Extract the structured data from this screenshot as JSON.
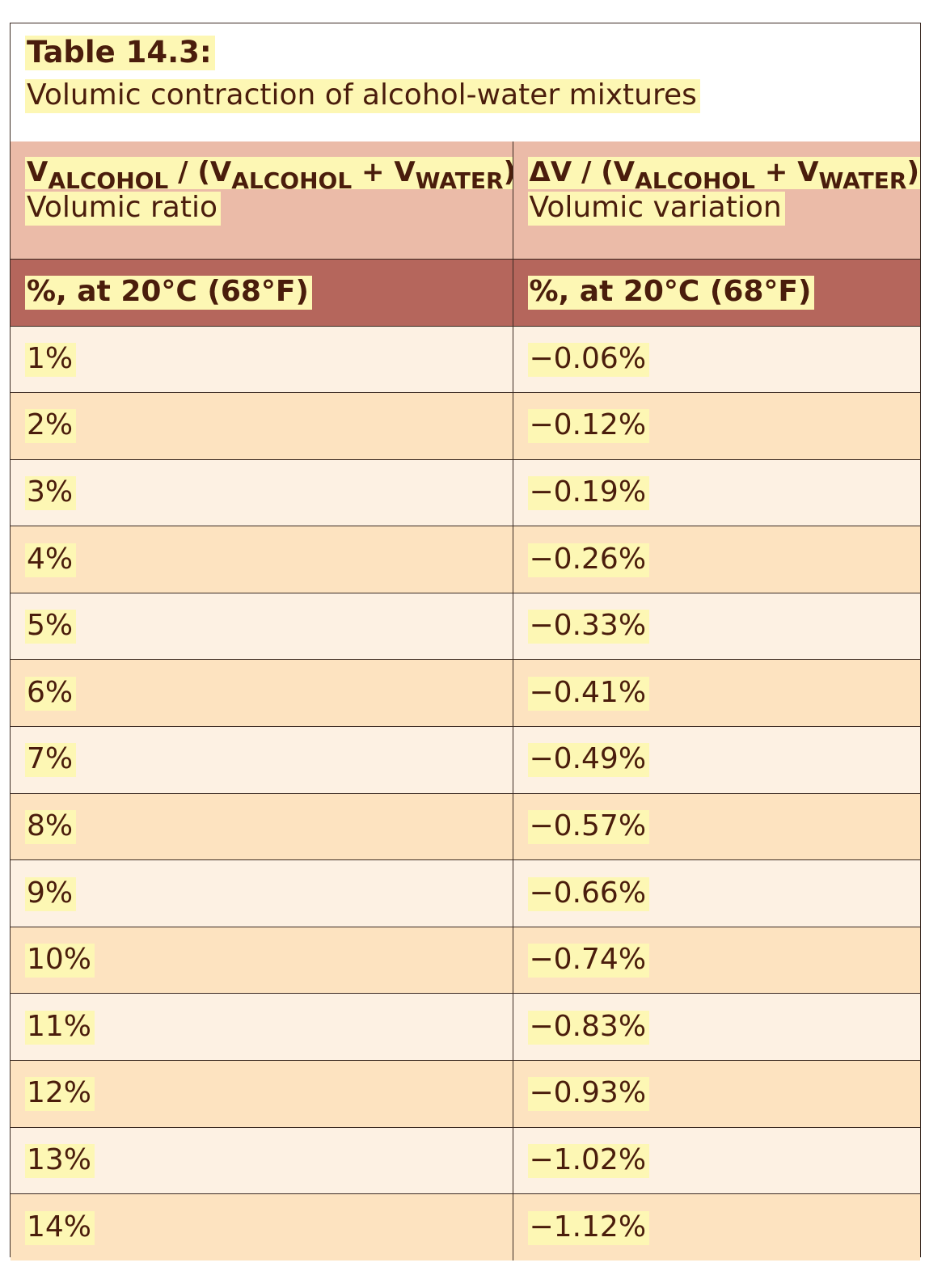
{
  "caption": {
    "title": "Table 14.3:",
    "subtitle": "Volumic contraction of alcohol-water mixtures"
  },
  "header": {
    "col1": {
      "v1": "V",
      "s1": "ALCOHOL",
      "t1": " / (V",
      "s2": "ALCOHOL",
      "t2": " + V",
      "s3": "WATER",
      "t3": ")",
      "subtitle": "Volumic ratio"
    },
    "col2": {
      "v1": "ΔV / (V",
      "s1": "ALCOHOL",
      "t1": " + V",
      "s2": "WATER",
      "t2": ")",
      "subtitle": "Volumic variation"
    },
    "unit1": "%, at 20°C (68°F)",
    "unit2": "%, at 20°C (68°F)"
  },
  "rows": [
    {
      "ratio": "1%",
      "variation": "−0.06%"
    },
    {
      "ratio": "2%",
      "variation": "−0.12%"
    },
    {
      "ratio": "3%",
      "variation": "−0.19%"
    },
    {
      "ratio": "4%",
      "variation": "−0.26%"
    },
    {
      "ratio": "5%",
      "variation": "−0.33%"
    },
    {
      "ratio": "6%",
      "variation": "−0.41%"
    },
    {
      "ratio": "7%",
      "variation": "−0.49%"
    },
    {
      "ratio": "8%",
      "variation": "−0.57%"
    },
    {
      "ratio": "9%",
      "variation": "−0.66%"
    },
    {
      "ratio": "10%",
      "variation": "−0.74%"
    },
    {
      "ratio": "11%",
      "variation": "−0.83%"
    },
    {
      "ratio": "12%",
      "variation": "−0.93%"
    },
    {
      "ratio": "13%",
      "variation": "−1.02%"
    },
    {
      "ratio": "14%",
      "variation": "−1.12%"
    }
  ],
  "colors": {
    "text": "#4a1d0c",
    "highlight": "#fdf7b4",
    "header_bg": "#ebbba8",
    "unit_bg": "#b5665c",
    "row_light": "#fdf1e3",
    "row_dark": "#fde3c0"
  }
}
